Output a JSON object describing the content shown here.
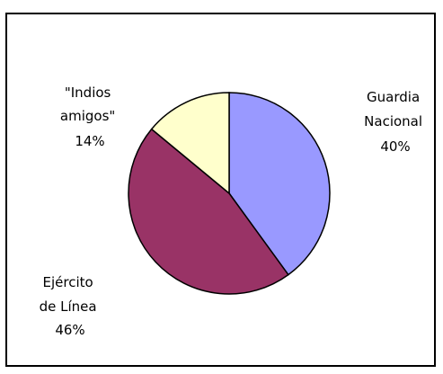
{
  "chart_data": {
    "type": "pie",
    "slices": [
      {
        "label_lines": [
          "Guardia",
          "Nacional"
        ],
        "value": 40,
        "value_label": "40%",
        "color": "#9999ff"
      },
      {
        "label_lines": [
          "Ejército",
          "de Línea"
        ],
        "value": 46,
        "value_label": "46%",
        "color": "#993366"
      },
      {
        "label_lines": [
          "\"Indios",
          "amigos\""
        ],
        "value": 14,
        "value_label": "14%",
        "color": "#ffffcc"
      }
    ],
    "start": "12 o'clock",
    "direction": "clockwise",
    "legend": "none",
    "grid": false
  }
}
